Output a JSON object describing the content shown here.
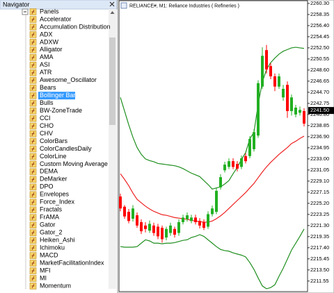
{
  "navigator": {
    "title": "Navigator",
    "selected": 11,
    "items": [
      "Panels",
      "Accelerator",
      "Accumulation Distribution",
      "ADX",
      "ADXW",
      "Alligator",
      "AMA",
      "ASI",
      "ATR",
      "Awesome_Oscillator",
      "Bears",
      "Bollinger Band",
      "Bulls",
      "BW-ZoneTrade",
      "CCI",
      "CHO",
      "CHV",
      "ColorBars",
      "ColorCandlesDaily",
      "ColorLine",
      "Custom Moving Average",
      "DEMA",
      "DeMarker",
      "DPO",
      "Envelopes",
      "Force_Index",
      "Fractals",
      "FrAMA",
      "Gator",
      "Gator_2",
      "Heiken_Ashi",
      "Ichimoku",
      "MACD",
      "MarketFacilitationIndex",
      "MFI",
      "MI",
      "Momentum"
    ]
  },
  "chart_data": {
    "type": "candlestick",
    "title": "RELIANCE#, M1:  Reliance Industries ( Refineries )",
    "up_color": "#22b022",
    "down_color": "#ff0000",
    "open": [
      2226.4,
      2224.6,
      2223.7,
      2222.5,
      2223.1,
      2221.9,
      2221.3,
      2220.4,
      2221.3,
      2221.1,
      2220.9,
      2219.2,
      2220.0,
      2220.7,
      2220.0,
      2221.9,
      2222.4,
      2222.1,
      2222.7,
      2222.1,
      2221.9,
      2221.1,
      2223.3,
      2223.7,
      2228.0,
      2231.0,
      2231.6,
      2232.6,
      2232.1,
      2231.6,
      2233.5,
      2233.5,
      2234.7,
      2237.1,
      2245.7,
      2252.1,
      2249.3,
      2247.5,
      2245.7,
      2243.8,
      2246.0,
      2241.4,
      2240.8,
      2241.1,
      2241.4
    ],
    "high": [
      2226.9,
      2224.9,
      2224.2,
      2224.9,
      2223.6,
      2222.4,
      2221.9,
      2222.2,
      2221.8,
      2221.6,
      2221.3,
      2221.1,
      2221.8,
      2221.1,
      2222.4,
      2223.2,
      2223.6,
      2223.2,
      2223.2,
      2222.6,
      2222.4,
      2223.8,
      2224.8,
      2227.9,
      2230.3,
      2232.5,
      2233.1,
      2233.1,
      2232.6,
      2233.6,
      2234.0,
      2237.0,
      2238.2,
      2246.8,
      2252.6,
      2253.0,
      2249.8,
      2248.0,
      2248.0,
      2246.0,
      2246.6,
      2244.3,
      2242.5,
      2242.2,
      2241.9
    ],
    "low": [
      2223.8,
      2222.5,
      2221.7,
      2222.0,
      2220.9,
      2219.8,
      2220.1,
      2220.0,
      2219.5,
      2218.9,
      2218.3,
      2218.7,
      2219.5,
      2219.2,
      2219.5,
      2221.5,
      2222.0,
      2221.7,
      2221.5,
      2220.8,
      2220.5,
      2220.7,
      2222.9,
      2223.3,
      2227.6,
      2230.6,
      2231.2,
      2231.2,
      2230.8,
      2231.2,
      2232.2,
      2233.1,
      2234.3,
      2236.7,
      2245.3,
      2248.0,
      2247.0,
      2244.9,
      2245.3,
      2243.2,
      2240.2,
      2240.6,
      2240.3,
      2240.6,
      2238.7
    ],
    "close": [
      2224.3,
      2222.9,
      2222.1,
      2224.3,
      2221.3,
      2220.3,
      2220.7,
      2221.6,
      2220.0,
      2219.4,
      2218.9,
      2220.7,
      2221.3,
      2219.7,
      2221.9,
      2222.7,
      2223.1,
      2222.7,
      2221.9,
      2221.3,
      2220.9,
      2223.3,
      2224.3,
      2227.4,
      2229.8,
      2232.0,
      2232.6,
      2231.6,
      2231.3,
      2233.1,
      2232.6,
      2236.5,
      2237.7,
      2246.3,
      2251.1,
      2248.7,
      2247.5,
      2245.7,
      2247.5,
      2245.3,
      2241.4,
      2243.8,
      2242.0,
      2241.6,
      2239.2
    ],
    "bands": {
      "outer_color": "#1f8f1f",
      "middle_color": "#ee2222",
      "upper": [
        2243.8,
        2241.4,
        2239.0,
        2236.8,
        2235.0,
        2233.8,
        2233.0,
        2232.7,
        2232.5,
        2232.2,
        2232.1,
        2232.0,
        2231.9,
        2231.8,
        2231.6,
        2231.3,
        2230.9,
        2230.5,
        2230.2,
        2229.9,
        2229.2,
        2228.5,
        2227.7,
        2227.9,
        2228.1,
        2228.6,
        2229.2,
        2230.4,
        2231.5,
        2232.9,
        2234.1,
        2236.5,
        2237.7,
        2242.6,
        2246.5,
        2248.7,
        2249.9,
        2250.7,
        2251.4,
        2251.9,
        2252.2,
        2252.5,
        2252.6,
        2252.5,
        2252.4
      ],
      "middle": [
        2230.4,
        2229.4,
        2228.3,
        2227.0,
        2225.9,
        2225.3,
        2224.7,
        2224.2,
        2223.8,
        2223.5,
        2223.2,
        2223.1,
        2222.9,
        2222.7,
        2222.6,
        2222.5,
        2222.4,
        2222.2,
        2222.1,
        2222.0,
        2221.9,
        2221.9,
        2222.1,
        2222.5,
        2223.0,
        2223.6,
        2224.3,
        2225.0,
        2225.7,
        2226.4,
        2227.1,
        2227.9,
        2228.7,
        2229.7,
        2230.7,
        2231.6,
        2232.4,
        2233.1,
        2233.8,
        2234.4,
        2235.0,
        2235.7,
        2236.1,
        2236.6,
        2237.0
      ],
      "lower": [
        2217.6,
        2217.5,
        2217.5,
        2217.5,
        2217.6,
        2218.2,
        2218.8,
        2218.6,
        2218.2,
        2218.2,
        2218.1,
        2218.2,
        2218.2,
        2218.3,
        2218.5,
        2218.7,
        2218.8,
        2219.2,
        2219.4,
        2219.7,
        2219.4,
        2218.8,
        2218.2,
        2217.6,
        2217.1,
        2216.9,
        2216.8,
        2216.5,
        2216.3,
        2216.1,
        2215.8,
        2214.8,
        2213.6,
        2212.1,
        2210.7,
        2210.2,
        2210.4,
        2210.9,
        2212.4,
        2213.8,
        2215.4,
        2217.0,
        2218.2,
        2219.4,
        2220.7
      ]
    },
    "bid": {
      "value": 2241.5,
      "label": "2241.50"
    },
    "ylim": [
      2209.7,
      2260.9
    ],
    "yticks": [
      {
        "value": 2260.3,
        "label": "2260.30"
      },
      2258.35,
      {
        "value": 2256.4,
        "label": "2256.40"
      },
      2254.45,
      {
        "value": 2252.5,
        "label": "2252.50"
      },
      2250.55,
      {
        "value": 2248.6,
        "label": "2248.60"
      },
      2246.65,
      {
        "value": 2244.7,
        "label": "2244.70"
      },
      2242.75,
      {
        "value": 2240.8,
        "label": "2240.80"
      },
      2238.85,
      {
        "value": 2236.9,
        "label": "2236.90"
      },
      2234.95,
      {
        "value": 2233,
        "label": "2233.00"
      },
      2231.05,
      {
        "value": 2229.1,
        "label": "2229.10"
      },
      2227.15,
      {
        "value": 2225.2,
        "label": "2225.20"
      },
      2223.25,
      {
        "value": 2221.3,
        "label": "2221.30"
      },
      2219.35,
      {
        "value": 2217.4,
        "label": "2217.40"
      },
      2215.45,
      {
        "value": 2213.5,
        "label": "2213.50"
      },
      2211.55
    ]
  }
}
